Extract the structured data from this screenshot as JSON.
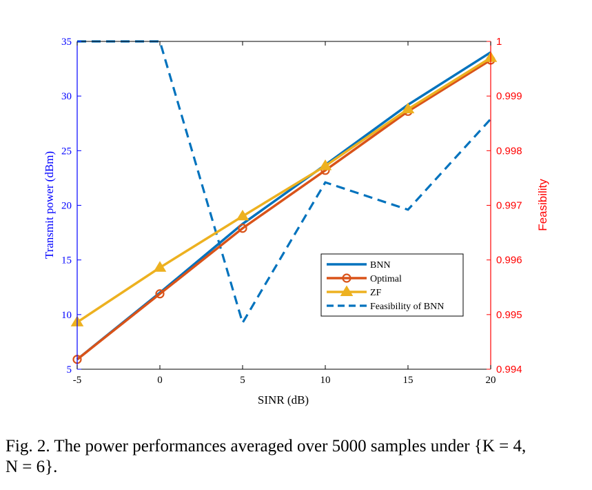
{
  "chart_data": {
    "type": "line",
    "xlabel": "SINR (dB)",
    "ylabel_left": "Transmit power (dBm)",
    "ylabel_right": "Feasibility",
    "x": [
      -5,
      0,
      5,
      10,
      15,
      20
    ],
    "x_ticks": [
      "-5",
      "0",
      "5",
      "10",
      "15",
      "20"
    ],
    "xlim": [
      -5,
      20
    ],
    "ylim_left": [
      5,
      35
    ],
    "y_ticks_left": [
      "5",
      "10",
      "15",
      "20",
      "25",
      "30",
      "35"
    ],
    "ylim_right": [
      0.994,
      1.0
    ],
    "y_ticks_right": [
      "0.994",
      "0.995",
      "0.996",
      "0.997",
      "0.998",
      "0.999",
      "1"
    ],
    "grid": false,
    "legend_position": "center-right",
    "series": [
      {
        "name": "BNN",
        "axis": "left",
        "values": [
          5.9,
          12.0,
          18.3,
          23.7,
          29.2,
          34.0
        ],
        "color": "#0072BD",
        "style": "solid",
        "marker": "none"
      },
      {
        "name": "Optimal",
        "axis": "left",
        "values": [
          5.9,
          11.9,
          17.9,
          23.2,
          28.6,
          33.3
        ],
        "color": "#D95319",
        "style": "solid",
        "marker": "circle"
      },
      {
        "name": "ZF",
        "axis": "left",
        "values": [
          9.3,
          14.3,
          19.0,
          23.6,
          28.8,
          33.5
        ],
        "color": "#EDB120",
        "style": "solid",
        "marker": "triangle"
      },
      {
        "name": "Feasibility of BNN",
        "axis": "right",
        "values": [
          1.0,
          1.0,
          0.99485,
          0.99742,
          0.99692,
          0.99858
        ],
        "color": "#0072BD",
        "style": "dashed",
        "marker": "none"
      }
    ],
    "colors": {
      "left_axis": "#0000FF",
      "right_axis": "#FF0000"
    }
  },
  "caption": {
    "line1": "Fig. 2.   The power performances averaged over 5000 samples under {K = 4,",
    "line2": "N = 6}."
  }
}
